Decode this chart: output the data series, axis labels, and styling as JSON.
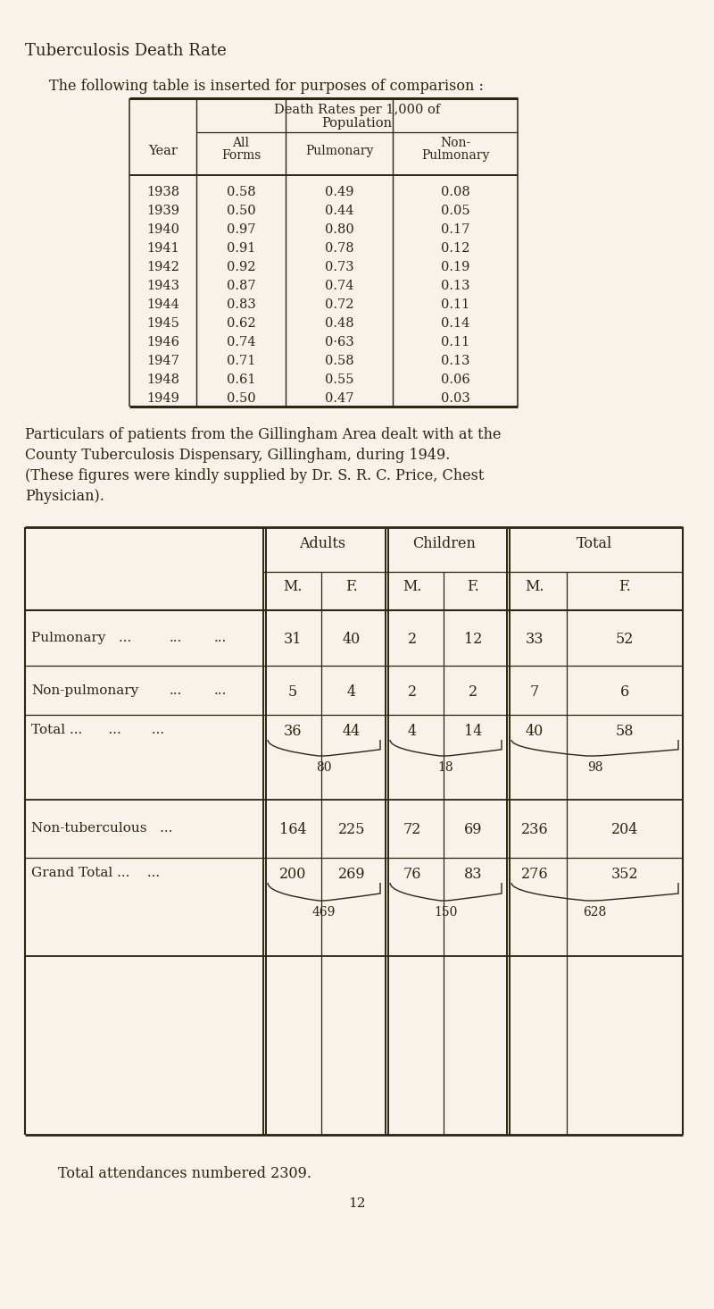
{
  "bg_color": "#f7f3ea",
  "title": "Tuberculosis Death Rate",
  "subtitle": "The following table is inserted for purposes of comparison :",
  "table1_rows": [
    [
      "1938",
      "0.58",
      "0.49",
      "0.08"
    ],
    [
      "1939",
      "0.50",
      "0.44",
      "0.05"
    ],
    [
      "1940",
      "0.97",
      "0.80",
      "0.17"
    ],
    [
      "1941",
      "0.91",
      "0.78",
      "0.12"
    ],
    [
      "1942",
      "0.92",
      "0.73",
      "0.19"
    ],
    [
      "1943",
      "0.87",
      "0.74",
      "0.13"
    ],
    [
      "1944",
      "0.83",
      "0.72",
      "0.11"
    ],
    [
      "1945",
      "0.62",
      "0.48",
      "0.14"
    ],
    [
      "1946",
      "0.74",
      "0·63",
      "0.11"
    ],
    [
      "1947",
      "0.71",
      "0.58",
      "0.13"
    ],
    [
      "1948",
      "0.61",
      "0.55",
      "0.06"
    ],
    [
      "1949",
      "0.50",
      "0.47",
      "0.03"
    ]
  ],
  "para_text": [
    "Particulars of patients from the Gillingham Area dealt with at the",
    "County Tuberculosis Dispensary, Gillingham, during 1949.",
    "(These figures were kindly supplied by Dr. S. R. C. Price, Chest",
    "Physician)."
  ],
  "footer": "Total attendances numbered 2309.",
  "page_num": "12",
  "text_color": "#2d2510",
  "border_color": "#2d2510"
}
